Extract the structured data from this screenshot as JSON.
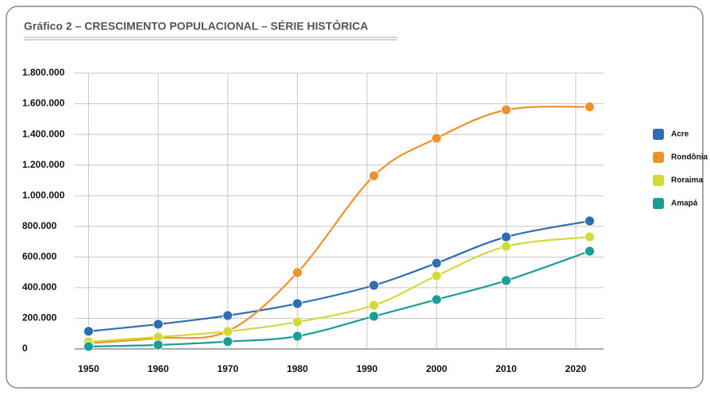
{
  "chart_data": {
    "type": "line",
    "title": "Gráfico 2 – CRESCIMENTO POPULACIONAL – SÉRIE HISTÓRICA",
    "x": [
      1950,
      1960,
      1970,
      1980,
      1991,
      2000,
      2010,
      2022
    ],
    "series": [
      {
        "name": "Acre",
        "color": "#2e6db4",
        "values": [
          115000,
          161000,
          218000,
          296000,
          415000,
          560000,
          731000,
          835000
        ]
      },
      {
        "name": "Rondônia",
        "color": "#f0922b",
        "values": [
          37000,
          70000,
          116000,
          498000,
          1130000,
          1375000,
          1560000,
          1580000
        ]
      },
      {
        "name": "Roraima",
        "color": "#d4d93a",
        "values": [
          47000,
          78000,
          114000,
          176000,
          285000,
          477000,
          669000,
          731000
        ]
      },
      {
        "name": "Amapá",
        "color": "#1a9e96",
        "values": [
          16000,
          26000,
          48000,
          83000,
          213000,
          322000,
          446000,
          638000
        ]
      }
    ],
    "xlim": [
      1948,
      2024
    ],
    "xticks": [
      1950,
      1960,
      1970,
      1980,
      1990,
      2000,
      2010,
      2020
    ],
    "ylim": [
      0,
      1800000
    ],
    "yticks": [
      0,
      {
        "value": 200000,
        "label": "200.000"
      },
      {
        "value": 400000,
        "label": "400.000"
      },
      {
        "value": 600000,
        "label": "600.000"
      },
      {
        "value": 800000,
        "label": "800.000"
      },
      {
        "value": 1000000,
        "label": "1.000.000"
      },
      {
        "value": 1200000,
        "label": "1.200.000"
      },
      {
        "value": 1400000,
        "label": "1.400.000"
      },
      {
        "value": 1600000,
        "label": "1.600.000"
      },
      {
        "value": 1800000,
        "label": "1.800.000"
      }
    ],
    "grid": true,
    "legend": "right"
  }
}
